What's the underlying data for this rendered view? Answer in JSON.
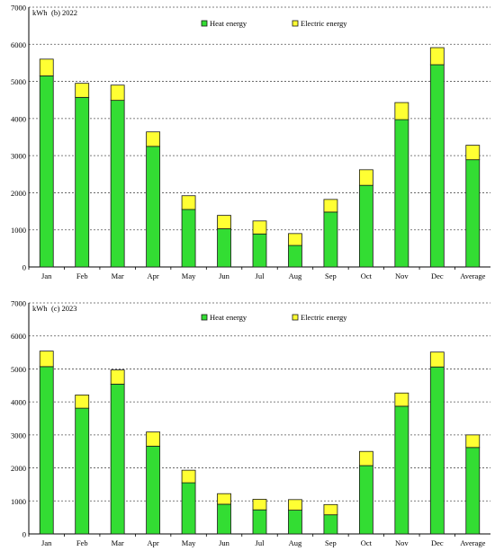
{
  "colors": {
    "heat": "#33dd33",
    "electric": "#ffff33",
    "stroke": "#1a1a1a",
    "grid": "#555555"
  },
  "chart_data": [
    {
      "type": "bar",
      "stacked": true,
      "unit_label": "kWh",
      "title": "(b) 2022",
      "categories": [
        "Jan",
        "Feb",
        "Mar",
        "Apr",
        "May",
        "Jun",
        "Jul",
        "Aug",
        "Sep",
        "Oct",
        "Nov",
        "Dec",
        "Average"
      ],
      "series": [
        {
          "name": "Heat energy",
          "values": [
            5150,
            4570,
            4490,
            3250,
            1550,
            1030,
            890,
            580,
            1480,
            2200,
            3970,
            5450,
            2890
          ]
        },
        {
          "name": "Electric energy",
          "values": [
            450,
            380,
            410,
            390,
            370,
            360,
            350,
            320,
            340,
            420,
            460,
            460,
            390
          ]
        }
      ],
      "ylim": [
        0,
        7000
      ],
      "yticks": [
        0,
        1000,
        2000,
        3000,
        4000,
        5000,
        6000,
        7000
      ],
      "grid": true,
      "legend_position": "top"
    },
    {
      "type": "bar",
      "stacked": true,
      "unit_label": "kWh",
      "title": "(c) 2023",
      "categories": [
        "Jan",
        "Feb",
        "Mar",
        "Apr",
        "May",
        "Jun",
        "Jul",
        "Aug",
        "Sep",
        "Oct",
        "Nov",
        "Dec",
        "Average"
      ],
      "series": [
        {
          "name": "Heat energy",
          "values": [
            5070,
            3810,
            4540,
            2660,
            1550,
            900,
            730,
            720,
            580,
            2070,
            3870,
            5060,
            2620
          ]
        },
        {
          "name": "Electric energy",
          "values": [
            470,
            400,
            430,
            430,
            380,
            320,
            320,
            320,
            310,
            430,
            400,
            450,
            380
          ]
        }
      ],
      "ylim": [
        0,
        7000
      ],
      "yticks": [
        0,
        1000,
        2000,
        3000,
        4000,
        5000,
        6000,
        7000
      ],
      "grid": true,
      "legend_position": "top"
    }
  ]
}
